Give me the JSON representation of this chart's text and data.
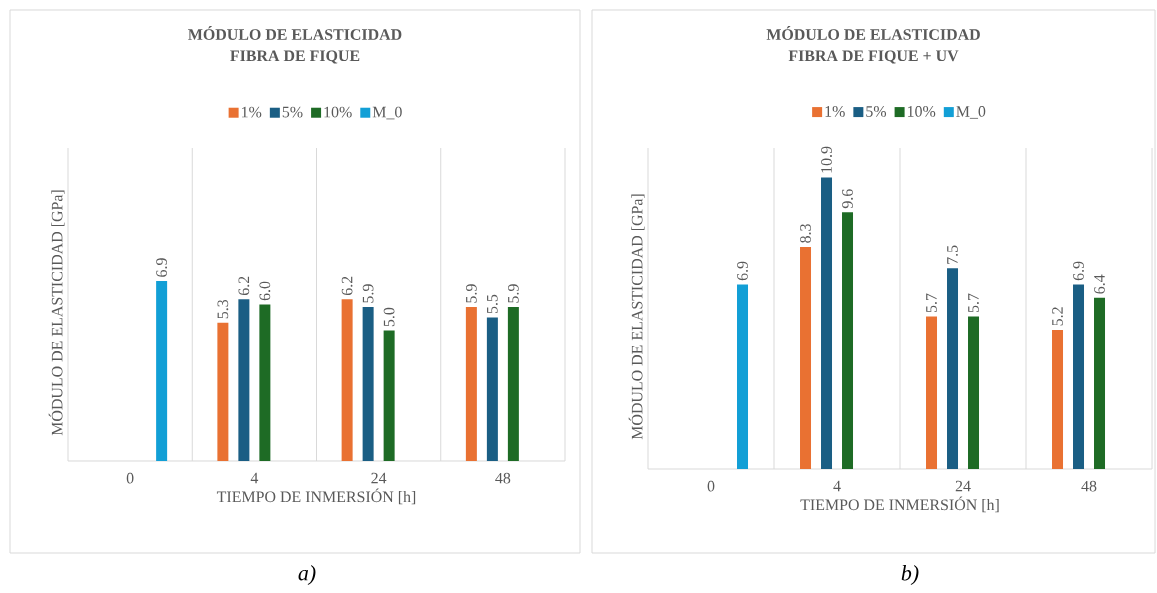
{
  "chart_data": [
    {
      "type": "bar",
      "title": "MÓDULO DE ELASTICIDAD",
      "subtitle": "FIBRA DE FIQUE",
      "xlabel": "TIEMPO DE INMERSIÓN  [h]",
      "ylabel": "MÓDULO DE ELASTICIDAD  [GPa]",
      "categories": [
        "0",
        "4",
        "24",
        "48"
      ],
      "series": [
        {
          "name": "1%",
          "color": "#e97132",
          "values": [
            null,
            5.3,
            6.2,
            5.9
          ],
          "value_labels": [
            null,
            "5.3",
            "6.2",
            "5.9"
          ]
        },
        {
          "name": "5%",
          "color": "#1a5e84",
          "values": [
            null,
            6.2,
            5.9,
            5.5
          ],
          "value_labels": [
            null,
            "6.2",
            "5.9",
            "5.5"
          ]
        },
        {
          "name": "10%",
          "color": "#1e6b25",
          "values": [
            null,
            6.0,
            5.0,
            5.9
          ],
          "value_labels": [
            null,
            "6.0",
            "5.0",
            "5.9"
          ]
        },
        {
          "name": "M_0",
          "color": "#129fd6",
          "values": [
            6.9,
            null,
            null,
            null
          ],
          "value_labels": [
            "6.9",
            null,
            null,
            null
          ]
        }
      ],
      "ylim": [
        0,
        12
      ],
      "grid": "x",
      "legend": "top",
      "tick_labels": "x",
      "annotations": [
        "a)"
      ]
    },
    {
      "type": "bar",
      "title": "MÓDULO DE ELASTICIDAD",
      "subtitle": "FIBRA DE FIQUE + UV",
      "xlabel": "TIEMPO DE INMERSIÓN  [h]",
      "ylabel": "MÓDULO DE ELASTICIDAD  [GPa]",
      "categories": [
        "0",
        "4",
        "24",
        "48"
      ],
      "series": [
        {
          "name": "1%",
          "color": "#e97132",
          "values": [
            null,
            8.3,
            5.7,
            5.2
          ],
          "value_labels": [
            null,
            "8.3",
            "5.7",
            "5.2"
          ]
        },
        {
          "name": "5%",
          "color": "#1a5e84",
          "values": [
            null,
            10.9,
            7.5,
            6.9
          ],
          "value_labels": [
            null,
            "10.9",
            "7.5",
            "6.9"
          ]
        },
        {
          "name": "10%",
          "color": "#1e6b25",
          "values": [
            null,
            9.6,
            5.7,
            6.4
          ],
          "value_labels": [
            null,
            "9.6",
            "5.7",
            "6.4"
          ]
        },
        {
          "name": "M_0",
          "color": "#129fd6",
          "values": [
            6.9,
            null,
            null,
            null
          ],
          "value_labels": [
            "6.9",
            null,
            null,
            null
          ]
        }
      ],
      "ylim": [
        0,
        12
      ],
      "grid": "x",
      "legend": "top",
      "tick_labels": "x",
      "annotations": [
        "b)"
      ]
    }
  ]
}
